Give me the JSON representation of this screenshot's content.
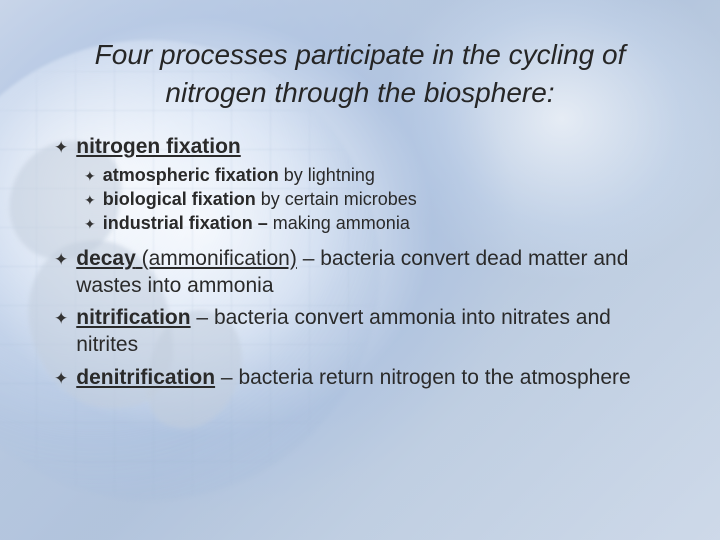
{
  "title": "Four processes participate in the cycling of nitrogen through the biosphere:",
  "bullet_glyph": "✦",
  "items": [
    {
      "bold_underline": "nitrogen fixation",
      "rest": "",
      "sub": [
        {
          "bold": "atmospheric fixation",
          "rest": " by lightning"
        },
        {
          "bold": "biological fixation",
          "rest": " by certain microbes"
        },
        {
          "bold": "industrial fixation –",
          "rest": " making ammonia"
        }
      ]
    },
    {
      "bold_underline": "decay",
      "paren_underline": " (ammonification)",
      "rest": " – bacteria convert dead matter and wastes into ammonia"
    },
    {
      "bold_underline": "nitrification",
      "rest": " –  bacteria convert ammonia into nitrates and nitrites"
    },
    {
      "bold_underline": "denitrification",
      "rest": " – bacteria return nitrogen to the atmosphere"
    }
  ],
  "colors": {
    "text": "#2a2a2a",
    "title": "#262626"
  }
}
